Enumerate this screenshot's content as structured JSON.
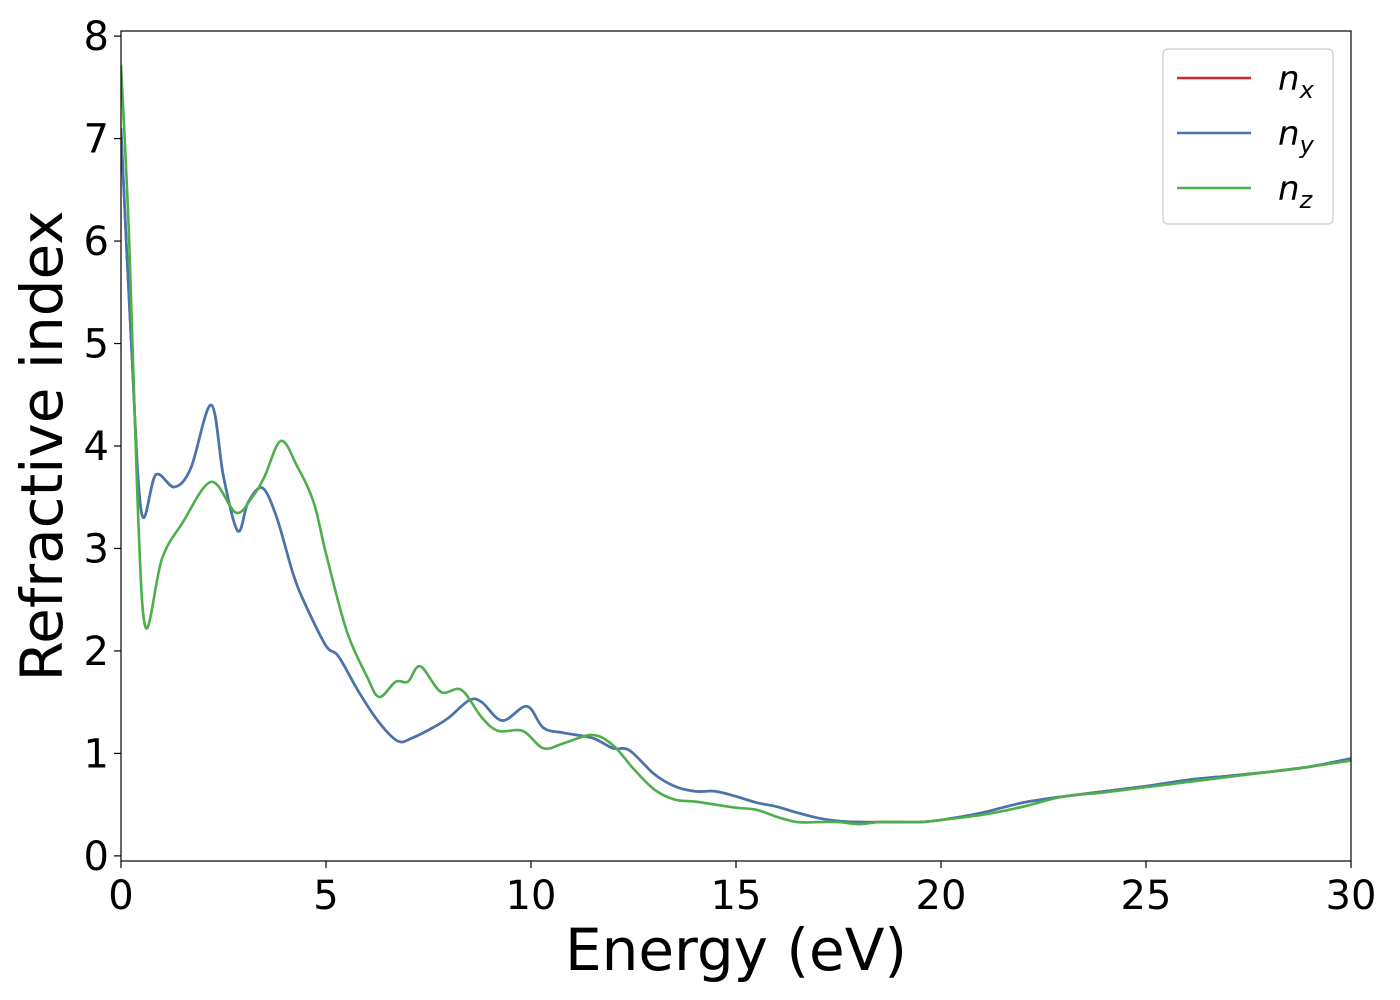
{
  "chart_data": {
    "type": "line",
    "xlabel": "Energy (eV)",
    "ylabel": "Refractive index",
    "xlim": [
      0,
      30
    ],
    "ylim": [
      -0.05,
      8.05
    ],
    "xticks": [
      0,
      5,
      10,
      15,
      20,
      25,
      30
    ],
    "yticks": [
      0,
      1,
      2,
      3,
      4,
      5,
      6,
      7,
      8
    ],
    "grid": false,
    "legend_position": "top-right",
    "series": [
      {
        "name": "n",
        "subscript": "x",
        "color": "#d62728",
        "x": [
          0,
          0.25,
          0.5,
          0.85,
          1.3,
          1.7,
          2.2,
          2.5,
          2.85,
          3.1,
          3.45,
          3.8,
          4.2,
          4.5,
          5.0,
          5.3,
          5.8,
          6.3,
          6.75,
          7.1,
          7.6,
          8.0,
          8.5,
          8.8,
          9.3,
          9.9,
          10.3,
          10.8,
          11.5,
          12.0,
          12.4,
          13.0,
          13.5,
          14.0,
          14.5,
          15.0,
          15.5,
          16.0,
          16.5,
          17.0,
          17.5,
          18.0,
          18.5,
          19.0,
          19.5,
          20.0,
          21.0,
          22.0,
          23.0,
          24.0,
          25.0,
          26.0,
          27.0,
          28.0,
          29.0,
          30.0
        ],
        "y": [
          7.1,
          5.0,
          3.35,
          3.72,
          3.6,
          3.78,
          4.4,
          3.7,
          3.17,
          3.45,
          3.59,
          3.3,
          2.75,
          2.45,
          2.05,
          1.95,
          1.6,
          1.3,
          1.12,
          1.15,
          1.25,
          1.35,
          1.52,
          1.5,
          1.32,
          1.46,
          1.25,
          1.2,
          1.15,
          1.05,
          1.03,
          0.8,
          0.68,
          0.63,
          0.63,
          0.58,
          0.52,
          0.48,
          0.42,
          0.37,
          0.34,
          0.33,
          0.33,
          0.33,
          0.33,
          0.35,
          0.42,
          0.52,
          0.58,
          0.63,
          0.68,
          0.74,
          0.78,
          0.82,
          0.87,
          0.95
        ]
      },
      {
        "name": "n",
        "subscript": "y",
        "color": "#4477b2",
        "x": [
          0,
          0.25,
          0.5,
          0.85,
          1.3,
          1.7,
          2.2,
          2.5,
          2.85,
          3.1,
          3.45,
          3.8,
          4.2,
          4.5,
          5.0,
          5.3,
          5.8,
          6.3,
          6.75,
          7.1,
          7.6,
          8.0,
          8.5,
          8.8,
          9.3,
          9.9,
          10.3,
          10.8,
          11.5,
          12.0,
          12.4,
          13.0,
          13.5,
          14.0,
          14.5,
          15.0,
          15.5,
          16.0,
          16.5,
          17.0,
          17.5,
          18.0,
          18.5,
          19.0,
          19.5,
          20.0,
          21.0,
          22.0,
          23.0,
          24.0,
          25.0,
          26.0,
          27.0,
          28.0,
          29.0,
          30.0
        ],
        "y": [
          7.1,
          5.0,
          3.35,
          3.72,
          3.6,
          3.78,
          4.4,
          3.7,
          3.17,
          3.45,
          3.59,
          3.3,
          2.75,
          2.45,
          2.05,
          1.95,
          1.6,
          1.3,
          1.12,
          1.15,
          1.25,
          1.35,
          1.52,
          1.5,
          1.32,
          1.46,
          1.25,
          1.2,
          1.15,
          1.05,
          1.03,
          0.8,
          0.68,
          0.63,
          0.63,
          0.58,
          0.52,
          0.48,
          0.42,
          0.37,
          0.34,
          0.33,
          0.33,
          0.33,
          0.33,
          0.35,
          0.42,
          0.52,
          0.58,
          0.63,
          0.68,
          0.74,
          0.78,
          0.82,
          0.87,
          0.95
        ]
      },
      {
        "name": "n",
        "subscript": "z",
        "color": "#4daf4a",
        "x": [
          0,
          0.2,
          0.4,
          0.6,
          1.0,
          1.5,
          2.2,
          2.8,
          3.2,
          3.5,
          3.9,
          4.3,
          4.7,
          5.0,
          5.5,
          6.0,
          6.3,
          6.7,
          7.0,
          7.3,
          7.8,
          8.3,
          8.8,
          9.2,
          9.8,
          10.3,
          10.8,
          11.5,
          12.0,
          12.5,
          13.0,
          13.5,
          14.0,
          14.5,
          15.0,
          15.5,
          16.0,
          16.5,
          17.0,
          17.5,
          18.0,
          18.5,
          19.0,
          19.5,
          20.0,
          21.0,
          22.0,
          23.0,
          24.0,
          25.0,
          26.0,
          27.0,
          28.0,
          29.0,
          30.0
        ],
        "y": [
          7.72,
          6.0,
          3.5,
          2.23,
          2.9,
          3.25,
          3.65,
          3.35,
          3.5,
          3.7,
          4.05,
          3.8,
          3.45,
          2.95,
          2.2,
          1.75,
          1.55,
          1.7,
          1.7,
          1.85,
          1.6,
          1.62,
          1.35,
          1.22,
          1.22,
          1.05,
          1.1,
          1.18,
          1.08,
          0.85,
          0.65,
          0.55,
          0.53,
          0.5,
          0.47,
          0.45,
          0.38,
          0.33,
          0.33,
          0.33,
          0.31,
          0.33,
          0.33,
          0.33,
          0.35,
          0.4,
          0.48,
          0.58,
          0.62,
          0.67,
          0.72,
          0.77,
          0.82,
          0.87,
          0.93
        ]
      }
    ]
  }
}
